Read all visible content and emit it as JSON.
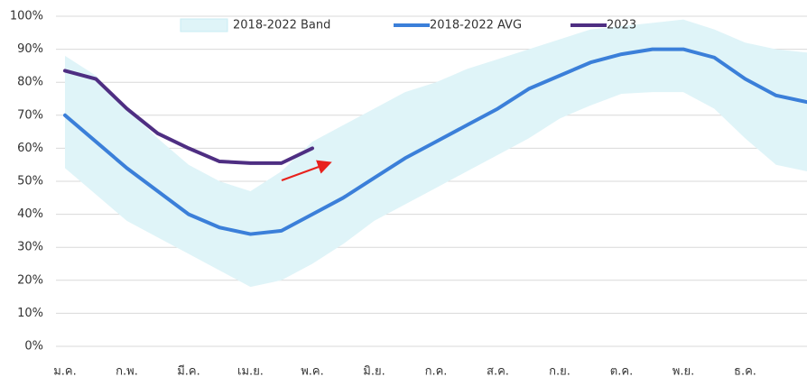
{
  "chart_data": {
    "type": "line",
    "categories": [
      "ม.ค.",
      null,
      "ก.พ.",
      null,
      "มี.ค.",
      null,
      "เม.ย.",
      null,
      "พ.ค.",
      null,
      "มิ.ย.",
      null,
      "ก.ค.",
      null,
      "ส.ค.",
      null,
      "ก.ย.",
      null,
      "ต.ค.",
      null,
      "พ.ย.",
      null,
      "ธ.ค.",
      null,
      null
    ],
    "series": [
      {
        "name": "2018-2022 Band",
        "color": "#dff4f8",
        "lower": [
          54,
          46,
          38,
          33,
          28,
          23,
          18,
          20,
          25,
          31,
          38,
          43,
          48,
          53,
          58,
          63,
          69,
          73,
          76.5,
          77,
          77,
          72,
          63,
          55,
          53
        ],
        "upper": [
          88,
          82,
          72,
          63,
          55,
          50,
          47,
          53,
          62,
          67,
          72,
          77,
          80,
          84,
          87,
          90,
          93,
          96,
          97,
          98,
          99,
          96,
          92,
          90,
          89
        ]
      },
      {
        "name": "2018-2022 AVG",
        "color": "#3b7fd9",
        "values": [
          70,
          62,
          54,
          47,
          40,
          36,
          34,
          35,
          40,
          45,
          51,
          57,
          62,
          67,
          72,
          78,
          82,
          86,
          88.5,
          90,
          90,
          87.5,
          81,
          76,
          74
        ]
      },
      {
        "name": "2023",
        "color": "#4e2e82",
        "values": [
          83.5,
          81,
          72,
          64.5,
          60,
          56,
          55.5,
          55.5,
          60,
          null,
          null,
          null,
          null,
          null,
          null,
          null,
          null,
          null,
          null,
          null,
          null,
          null,
          null,
          null,
          null
        ]
      }
    ],
    "ylim": [
      0,
      100
    ],
    "yticks": [
      {
        "value": 0,
        "label": "0%"
      },
      {
        "value": 10,
        "label": "10%"
      },
      {
        "value": 20,
        "label": "20%"
      },
      {
        "value": 30,
        "label": "30%"
      },
      {
        "value": 40,
        "label": "40%"
      },
      {
        "value": 50,
        "label": "50%"
      },
      {
        "value": 60,
        "label": "60%"
      },
      {
        "value": 70,
        "label": "70%"
      },
      {
        "value": 80,
        "label": "80%"
      },
      {
        "value": 90,
        "label": "90%"
      },
      {
        "value": 100,
        "label": "100%"
      }
    ],
    "grid": true,
    "legend": "top"
  }
}
